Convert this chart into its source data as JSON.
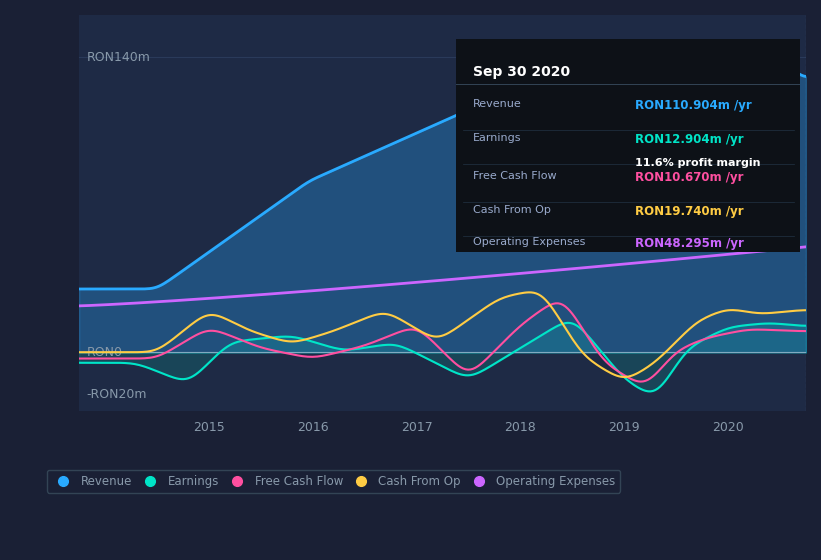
{
  "bg_color": "#1a2035",
  "plot_bg_color": "#1e2a45",
  "grid_color": "#2a3a5a",
  "text_color": "#8899aa",
  "title_color": "#ffffff",
  "ylim": [
    -20,
    160
  ],
  "yticks": [
    0,
    140
  ],
  "ytick_labels": [
    "RON0",
    "RON140m"
  ],
  "yneg_label": "-RON20m",
  "xlabel_years": [
    2015,
    2016,
    2017,
    2018,
    2019,
    2020
  ],
  "colors": {
    "revenue": "#29aaff",
    "earnings": "#00e5c8",
    "fcf": "#ff4fa0",
    "cashop": "#ffcc44",
    "opex": "#cc66ff"
  },
  "legend_labels": [
    "Revenue",
    "Earnings",
    "Free Cash Flow",
    "Cash From Op",
    "Operating Expenses"
  ],
  "tooltip": {
    "date": "Sep 30 2020",
    "revenue_label": "Revenue",
    "revenue_val": "RON110.904m",
    "earnings_label": "Earnings",
    "earnings_val": "RON12.904m",
    "margin_val": "11.6%",
    "fcf_label": "Free Cash Flow",
    "fcf_val": "RON10.670m",
    "cashop_label": "Cash From Op",
    "cashop_val": "RON19.740m",
    "opex_label": "Operating Expenses",
    "opex_val": "RON48.295m"
  }
}
